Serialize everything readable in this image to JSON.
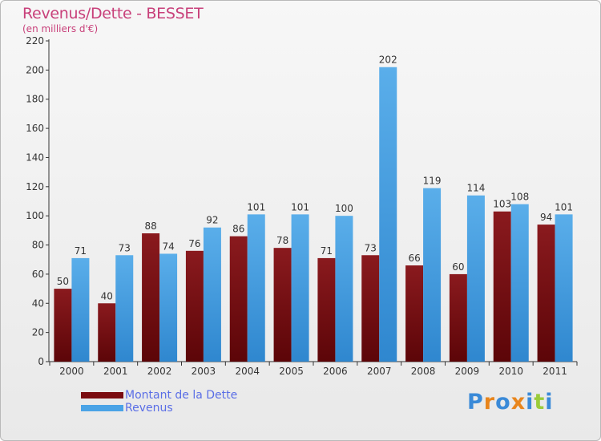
{
  "header": {
    "title": "Revenus/Dette - BESSET",
    "subtitle": "(en milliers d'€)"
  },
  "colors": {
    "dette": "#7a0c10",
    "revenus": "#4aa3e6",
    "title": "#c8407a",
    "legend_text": "#5a6ee6"
  },
  "logo": {
    "text": "Proxiti",
    "letters": [
      "P",
      "r",
      "o",
      "x",
      "i",
      "t",
      "i"
    ],
    "colors": [
      "#3a8ad8",
      "#e8851c",
      "#3a8ad8",
      "#e8851c",
      "#3a8ad8",
      "#9acb3a",
      "#3a8ad8"
    ]
  },
  "chart_data": {
    "type": "bar",
    "title": "Revenus/Dette - BESSET",
    "subtitle": "(en milliers d'€)",
    "xlabel": "",
    "ylabel": "",
    "categories": [
      "2000",
      "2001",
      "2002",
      "2003",
      "2004",
      "2005",
      "2006",
      "2007",
      "2008",
      "2009",
      "2010",
      "2011"
    ],
    "series": [
      {
        "name": "Montant de la Dette",
        "values": [
          50,
          40,
          88,
          76,
          86,
          78,
          71,
          73,
          66,
          60,
          103,
          94
        ]
      },
      {
        "name": "Revenus",
        "values": [
          71,
          73,
          74,
          92,
          101,
          101,
          100,
          202,
          119,
          114,
          108,
          101
        ]
      }
    ],
    "ylim": [
      0,
      220
    ],
    "yticks": [
      0,
      20,
      40,
      60,
      80,
      100,
      120,
      140,
      160,
      180,
      200,
      220
    ],
    "grid": false,
    "data_labels": true,
    "legend_position": "bottom-left"
  }
}
